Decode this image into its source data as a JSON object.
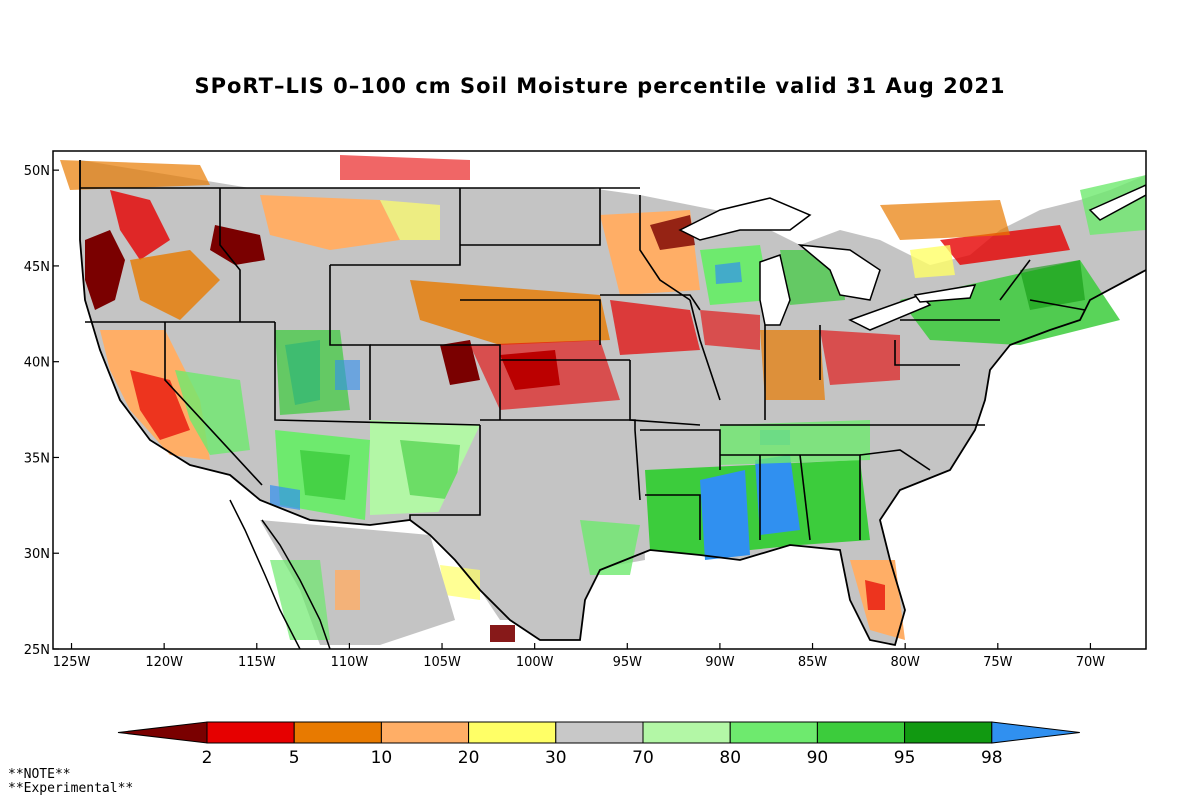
{
  "title": "SPoRT–LIS 0–100 cm Soil Moisture percentile valid 31 Aug 2021",
  "map": {
    "lat_labels": [
      "50N",
      "45N",
      "40N",
      "35N",
      "30N",
      "25N"
    ],
    "lat_values": [
      50,
      45,
      40,
      35,
      30,
      25
    ],
    "lon_labels": [
      "125W",
      "120W",
      "115W",
      "110W",
      "105W",
      "100W",
      "95W",
      "90W",
      "85W",
      "80W",
      "75W",
      "70W"
    ],
    "lon_values": [
      -125,
      -120,
      -115,
      -110,
      -105,
      -100,
      -95,
      -90,
      -85,
      -80,
      -75,
      -70
    ],
    "lon_range": [
      -126,
      -67
    ],
    "lat_range": [
      25,
      51
    ]
  },
  "colorbar": {
    "labels": [
      "2",
      "5",
      "10",
      "20",
      "30",
      "70",
      "80",
      "90",
      "95",
      "98"
    ],
    "colors": [
      "#7a0000",
      "#e60000",
      "#e87a00",
      "#ffae66",
      "#ffff66",
      "#c8c8c8",
      "#b3f7a6",
      "#6eea6e",
      "#3ccc3c",
      "#119911",
      "#3090f0"
    ]
  },
  "notes": [
    "**NOTE**",
    "**Experimental**"
  ]
}
